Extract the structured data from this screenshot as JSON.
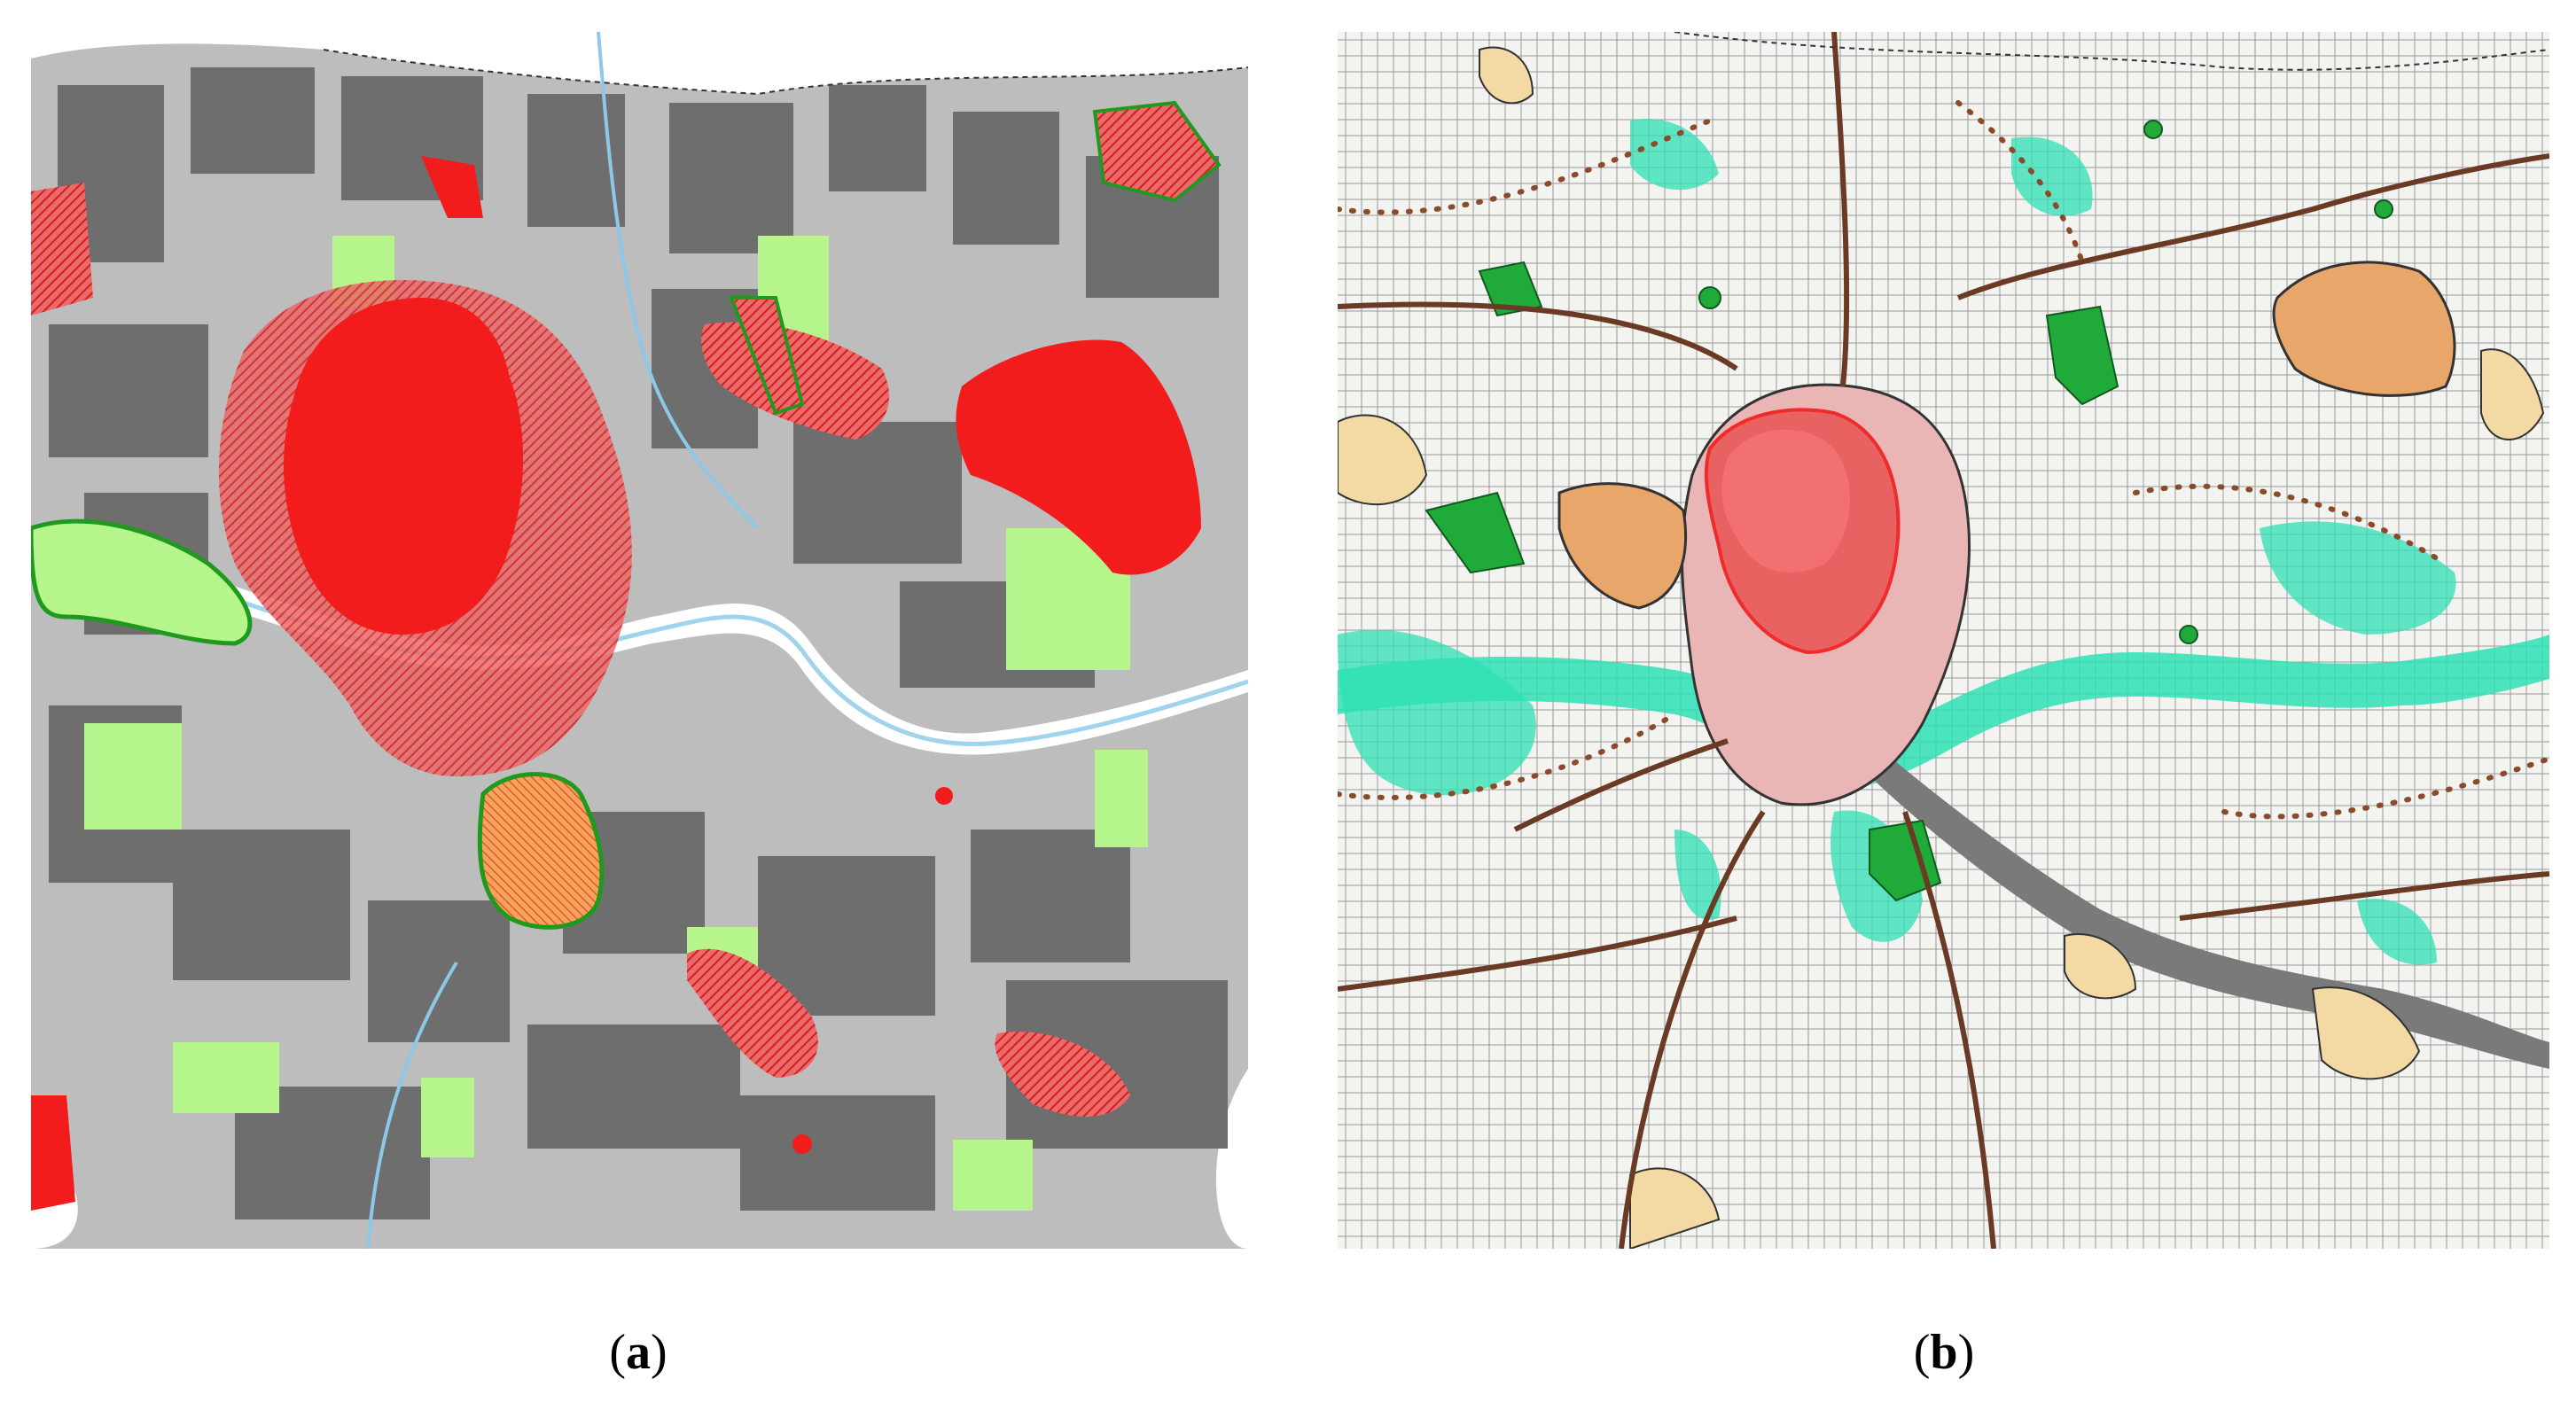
{
  "figure": {
    "panels": [
      {
        "id": "a",
        "caption_open": "(",
        "caption_letter": "a",
        "caption_close": ")"
      },
      {
        "id": "b",
        "caption_open": "(",
        "caption_letter": "b",
        "caption_close": ")"
      }
    ]
  },
  "colors": {
    "built_dark": "#6e6e6e",
    "built_light": "#bdbdbd",
    "green_light": "#b6f58c",
    "green_mid": "#9ae57a",
    "red": "#f21c1c",
    "red_hatched": "#e8575a",
    "orange": "#f3a15a",
    "river": "#9fd4ec",
    "river_white": "#ffffff",
    "outline_green": "#1f9a1f",
    "teal": "#2ee0b5",
    "teal_light": "#9af0d4",
    "road_brown": "#6b3a24",
    "beige": "#f3d9a4",
    "tan": "#e9a66b",
    "pink": "#e9b5b5",
    "map_bg_b": "#f3f3ef",
    "grey_band": "#7a7a7a"
  }
}
